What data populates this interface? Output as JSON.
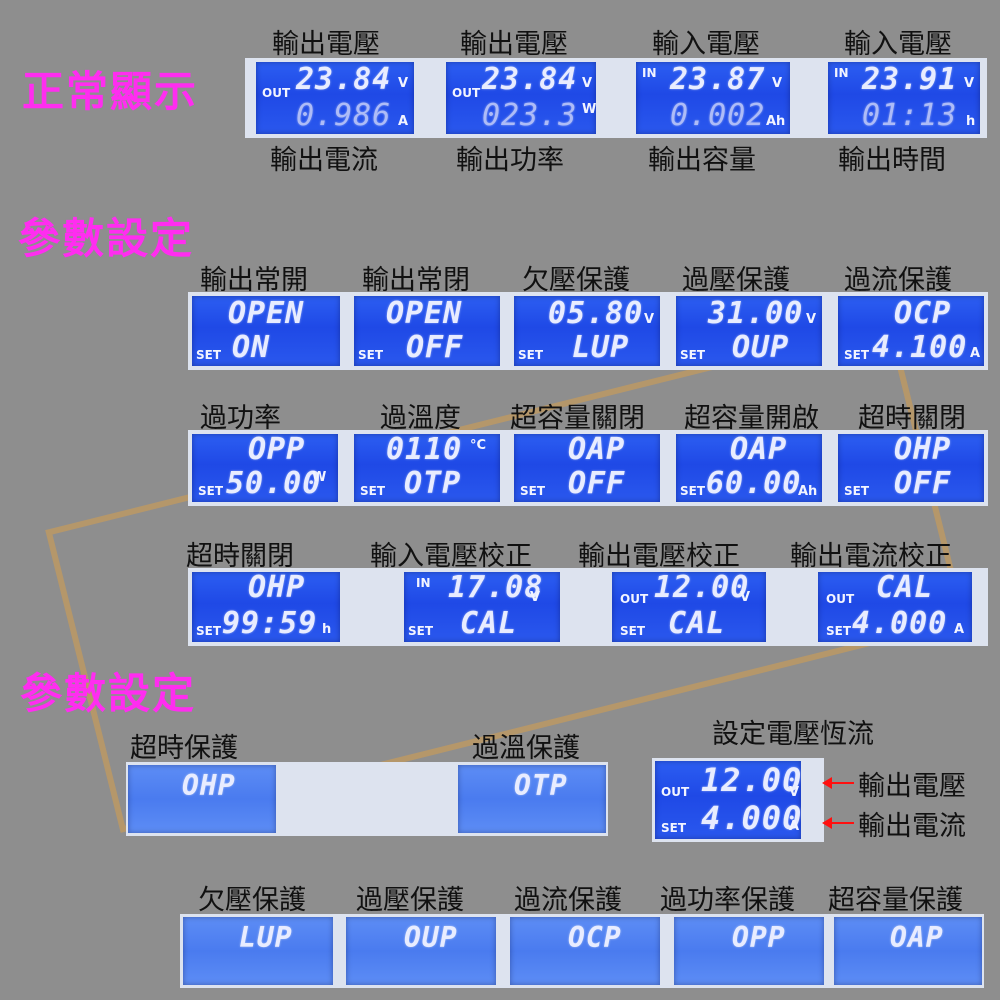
{
  "section_normal": {
    "title": "正常顯示"
  },
  "normal": {
    "top_labels": [
      "輸出電壓",
      "輸出電壓",
      "輸入電壓",
      "輸入電壓"
    ],
    "bottom_labels": [
      "輸出電流",
      "輸出功率",
      "輸出容量",
      "輸出時間"
    ],
    "screens": [
      {
        "tag": "OUT",
        "top": "23.84",
        "top_unit": "V",
        "bottom": "0.986",
        "bottom_unit": "A"
      },
      {
        "tag": "OUT",
        "top": "23.84",
        "top_unit": "V",
        "bottom": "023.3",
        "bottom_unit": "W"
      },
      {
        "tag": "IN",
        "top": "23.87",
        "top_unit": "V",
        "bottom": "0.002",
        "bottom_unit": "Ah"
      },
      {
        "tag": "IN",
        "top": "23.91",
        "top_unit": "V",
        "bottom": "01:13",
        "bottom_unit": "h"
      }
    ]
  },
  "section_settings1": {
    "title": "參數設定"
  },
  "settings_row1": {
    "labels": [
      "輸出常開",
      "輸出常閉",
      "欠壓保護",
      "過壓保護",
      "過流保護"
    ],
    "screens": [
      {
        "top": "OPEN",
        "top_unit": "",
        "tag": "SET",
        "bottom": "ON",
        "bottom_unit": ""
      },
      {
        "top": "OPEN",
        "top_unit": "",
        "tag": "SET",
        "bottom": "OFF",
        "bottom_unit": ""
      },
      {
        "top": "05.80",
        "top_unit": "V",
        "tag": "SET",
        "bottom": "LUP",
        "bottom_unit": ""
      },
      {
        "top": "31.00",
        "top_unit": "V",
        "tag": "SET",
        "bottom": "OUP",
        "bottom_unit": ""
      },
      {
        "top": "OCP",
        "top_unit": "",
        "tag": "SET",
        "bottom": "4.100",
        "bottom_unit": "A"
      }
    ]
  },
  "settings_row2": {
    "labels": [
      "過功率",
      "過溫度",
      "超容量關閉",
      "超容量開啟",
      "超時關閉"
    ],
    "screens": [
      {
        "top": "OPP",
        "top_unit": "",
        "tag": "SET",
        "bottom": "50.00",
        "bottom_unit": "W"
      },
      {
        "top": "0110",
        "top_unit": "°C",
        "tag": "SET",
        "bottom": "OTP",
        "bottom_unit": ""
      },
      {
        "top": "OAP",
        "top_unit": "",
        "tag": "SET",
        "bottom": "OFF",
        "bottom_unit": ""
      },
      {
        "top": "OAP",
        "top_unit": "",
        "tag": "SET",
        "bottom": "60.00",
        "bottom_unit": "Ah"
      },
      {
        "top": "OHP",
        "top_unit": "",
        "tag": "SET",
        "bottom": "OFF",
        "bottom_unit": ""
      }
    ]
  },
  "settings_row3": {
    "labels": [
      "超時關閉",
      "輸入電壓校正",
      "輸出電壓校正",
      "輸出電流校正"
    ],
    "screens": [
      {
        "top_tag": "",
        "top": "OHP",
        "top_unit": "",
        "tag": "SET",
        "bottom": "99:59",
        "bottom_unit": "h"
      },
      {
        "top_tag": "IN",
        "top": "17.08",
        "top_unit": "V",
        "tag": "SET",
        "bottom": "CAL",
        "bottom_unit": ""
      },
      {
        "top_tag": "OUT",
        "top": "12.00",
        "top_unit": "V",
        "tag": "SET",
        "bottom": "CAL",
        "bottom_unit": ""
      },
      {
        "top_tag": "OUT",
        "top": "CAL",
        "top_unit": "",
        "tag": "SET",
        "bottom": "4.000",
        "bottom_unit": "A"
      }
    ]
  },
  "section_settings2": {
    "title": "參數設定"
  },
  "protection_display": {
    "labels": [
      "超時保護",
      "過溫保護"
    ],
    "screens": [
      {
        "text": "OHP"
      },
      {
        "text": "OTP"
      }
    ]
  },
  "cv_cc": {
    "title": "設定電壓恆流",
    "top_tag": "OUT",
    "top": "12.00",
    "top_unit": "V",
    "bottom_tag": "SET",
    "bottom": "4.000",
    "bottom_unit": "A",
    "arrow_labels": [
      "輸出電壓",
      "輸出電流"
    ],
    "arrow_color": "#ff1010"
  },
  "bottom_row": {
    "labels": [
      "欠壓保護",
      "過壓保護",
      "過流保護",
      "過功率保護",
      "超容量保護"
    ],
    "screens": [
      {
        "text": "LUP"
      },
      {
        "text": "OUP"
      },
      {
        "text": "OCP"
      },
      {
        "text": "OPP"
      },
      {
        "text": "OAP"
      }
    ]
  },
  "colors": {
    "section_title": "#ff2df0",
    "lcd_blue": "#2452ec",
    "background": "#8e8e8e"
  }
}
